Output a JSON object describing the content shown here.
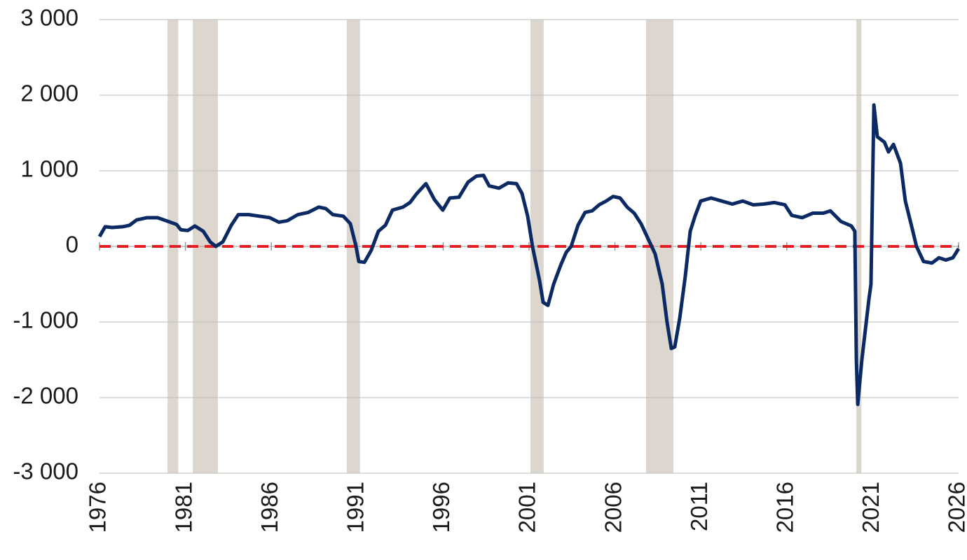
{
  "chart_data": {
    "type": "line",
    "x": [
      1976.0,
      1976.33,
      1976.73,
      1977.35,
      1977.75,
      1978.16,
      1978.77,
      1979.38,
      1980.0,
      1980.49,
      1980.73,
      1981.14,
      1981.55,
      1982.04,
      1982.44,
      1982.77,
      1983.18,
      1983.67,
      1984.08,
      1984.69,
      1985.3,
      1985.91,
      1986.44,
      1986.93,
      1987.54,
      1988.15,
      1988.76,
      1989.17,
      1989.58,
      1990.19,
      1990.6,
      1990.93,
      1991.09,
      1991.42,
      1991.82,
      1992.23,
      1992.64,
      1993.05,
      1993.66,
      1994.07,
      1994.47,
      1995.0,
      1995.49,
      1995.98,
      1996.39,
      1996.92,
      1997.45,
      1997.94,
      1998.35,
      1998.68,
      1999.25,
      1999.78,
      2000.27,
      2000.59,
      2000.92,
      2001.2,
      2001.61,
      2001.82,
      2002.1,
      2002.43,
      2002.84,
      2003.16,
      2003.45,
      2003.85,
      2004.26,
      2004.67,
      2005.08,
      2005.49,
      2005.89,
      2006.3,
      2006.71,
      2007.12,
      2007.52,
      2007.93,
      2008.34,
      2008.75,
      2009.03,
      2009.28,
      2009.48,
      2009.77,
      2010.09,
      2010.38,
      2010.66,
      2010.99,
      2011.6,
      2012.21,
      2012.83,
      2013.44,
      2014.05,
      2014.66,
      2015.27,
      2015.89,
      2016.29,
      2016.9,
      2017.52,
      2018.13,
      2018.54,
      2019.15,
      2019.76,
      2019.96,
      2020.05,
      2020.13,
      2020.37,
      2020.78,
      2020.9,
      2021.07,
      2021.27,
      2021.68,
      2021.92,
      2022.21,
      2022.62,
      2022.9,
      2023.23,
      2023.55,
      2023.96,
      2024.45,
      2024.86,
      2025.26,
      2025.67,
      2026.0
    ],
    "series": [
      {
        "color": "#0b2a63",
        "values": [
          130,
          260,
          250,
          260,
          280,
          350,
          380,
          380,
          330,
          290,
          220,
          210,
          270,
          200,
          60,
          0,
          60,
          280,
          420,
          420,
          400,
          380,
          320,
          340,
          420,
          450,
          520,
          500,
          420,
          400,
          300,
          0,
          -200,
          -210,
          -50,
          200,
          280,
          480,
          520,
          580,
          700,
          830,
          620,
          480,
          640,
          650,
          850,
          930,
          940,
          800,
          770,
          840,
          830,
          700,
          400,
          0,
          -450,
          -740,
          -780,
          -500,
          -250,
          -80,
          0,
          280,
          450,
          470,
          550,
          600,
          660,
          640,
          520,
          440,
          300,
          100,
          -100,
          -500,
          -1000,
          -1350,
          -1330,
          -950,
          -400,
          200,
          400,
          600,
          640,
          600,
          560,
          600,
          550,
          560,
          580,
          550,
          410,
          380,
          440,
          440,
          470,
          330,
          270,
          200,
          -1500,
          -2090,
          -1500,
          -700,
          -500,
          1870,
          1450,
          1380,
          1250,
          1350,
          1100,
          600,
          300,
          0,
          -200,
          -220,
          -150,
          -180,
          -150,
          -30
        ]
      }
    ],
    "xlim": [
      1976,
      2026
    ],
    "xticks": [
      1976,
      1981,
      1986,
      1991,
      1996,
      2001,
      2006,
      2011,
      2016,
      2021,
      2026
    ],
    "ylim": [
      -3000,
      3000
    ],
    "yticks": [
      {
        "value": -3000,
        "label": "-3 000"
      },
      {
        "value": -2000,
        "label": "-2 000"
      },
      {
        "value": -1000,
        "label": "-1 000"
      },
      0,
      {
        "value": 1000,
        "label": "1 000"
      },
      {
        "value": 2000,
        "label": "2 000"
      },
      {
        "value": 3000,
        "label": "3 000"
      }
    ],
    "grid": true,
    "shaded_periods": [
      [
        1979.96,
        1980.58
      ],
      [
        1981.43,
        1982.89
      ],
      [
        1990.39,
        1991.16
      ],
      [
        2001.08,
        2001.85
      ],
      [
        2007.81,
        2009.4
      ],
      [
        2020.05,
        2020.34
      ]
    ],
    "shade_color": "#dcd6ce",
    "reference_line": {
      "value": 0,
      "color": "#e31e24"
    }
  }
}
